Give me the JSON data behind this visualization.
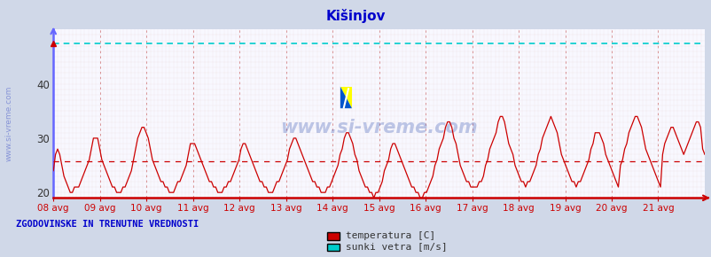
{
  "title": "Kišinjov",
  "title_color": "#0000cc",
  "bg_color": "#d0d8e8",
  "plot_bg_color": "#f8f8ff",
  "ylim": [
    19.0,
    50.0
  ],
  "xlim": [
    0,
    336
  ],
  "yticks": [
    20,
    30,
    40
  ],
  "x_tick_labels": [
    "08 avg",
    "09 avg",
    "10 avg",
    "11 avg",
    "12 avg",
    "13 avg",
    "14 avg",
    "15 avg",
    "16 avg",
    "17 avg",
    "18 avg",
    "19 avg",
    "20 avg",
    "21 avg"
  ],
  "x_tick_positions": [
    0,
    24,
    48,
    72,
    96,
    120,
    144,
    168,
    192,
    216,
    240,
    264,
    288,
    312
  ],
  "avg_line_y": 25.7,
  "cyan_line_y": 47.5,
  "watermark": "www.si-vreme.com",
  "watermark_color": "#2244aa",
  "watermark_alpha": 0.28,
  "footer_text": "ZGODOVINSKE IN TRENUTNE VREDNOSTI",
  "footer_color": "#0000cc",
  "legend_labels": [
    "temperatura [C]",
    "sunki vetra [m/s]"
  ],
  "legend_colors": [
    "#cc0000",
    "#00cccc"
  ],
  "temp_line_color": "#cc0000",
  "cyan_line_color": "#00cccc",
  "avg_line_color": "#cc0000",
  "axis_left_color": "#6666ff",
  "axis_bottom_color": "#cc0000",
  "grid_color": "#cc8888",
  "temp_data": [
    24,
    27,
    28,
    27,
    25,
    23,
    22,
    21,
    20,
    20,
    21,
    21,
    21,
    22,
    23,
    24,
    25,
    26,
    28,
    30,
    30,
    30,
    28,
    26,
    25,
    24,
    23,
    22,
    21,
    21,
    20,
    20,
    20,
    21,
    21,
    22,
    23,
    24,
    26,
    28,
    30,
    31,
    32,
    32,
    31,
    30,
    28,
    26,
    25,
    24,
    23,
    22,
    22,
    21,
    21,
    20,
    20,
    20,
    21,
    22,
    22,
    23,
    24,
    25,
    27,
    29,
    29,
    29,
    28,
    27,
    26,
    25,
    24,
    23,
    22,
    22,
    21,
    21,
    20,
    20,
    20,
    21,
    21,
    22,
    22,
    23,
    24,
    25,
    26,
    28,
    29,
    29,
    28,
    27,
    26,
    25,
    24,
    23,
    22,
    22,
    21,
    21,
    20,
    20,
    20,
    21,
    22,
    22,
    23,
    24,
    25,
    26,
    28,
    29,
    30,
    30,
    29,
    28,
    27,
    26,
    25,
    24,
    23,
    22,
    22,
    21,
    21,
    20,
    20,
    20,
    21,
    21,
    22,
    23,
    24,
    25,
    27,
    28,
    30,
    31,
    31,
    30,
    29,
    27,
    26,
    24,
    23,
    22,
    21,
    21,
    20,
    20,
    19,
    20,
    20,
    21,
    22,
    24,
    25,
    26,
    28,
    29,
    29,
    28,
    27,
    26,
    25,
    24,
    23,
    22,
    21,
    21,
    20,
    20,
    19,
    19,
    20,
    20,
    21,
    22,
    23,
    25,
    26,
    28,
    29,
    30,
    32,
    33,
    33,
    32,
    30,
    29,
    27,
    25,
    24,
    23,
    22,
    22,
    21,
    21,
    21,
    21,
    22,
    22,
    23,
    25,
    26,
    28,
    29,
    30,
    31,
    33,
    34,
    34,
    33,
    31,
    29,
    28,
    27,
    25,
    24,
    23,
    22,
    22,
    21,
    22,
    22,
    23,
    24,
    25,
    27,
    28,
    30,
    31,
    32,
    33,
    34,
    33,
    32,
    31,
    29,
    27,
    26,
    25,
    24,
    23,
    22,
    22,
    21,
    22,
    22,
    23,
    24,
    25,
    26,
    28,
    29,
    31,
    31,
    31,
    30,
    29,
    27,
    26,
    25,
    24,
    23,
    22,
    21,
    25,
    26,
    28,
    29,
    31,
    32,
    33,
    34,
    34,
    33,
    32,
    30,
    28,
    27,
    26,
    25,
    24,
    23,
    22,
    21,
    27,
    29,
    30,
    31,
    32,
    32,
    31,
    30,
    29,
    28,
    27,
    28,
    29,
    30,
    31,
    32,
    33,
    33,
    32,
    28,
    27
  ]
}
